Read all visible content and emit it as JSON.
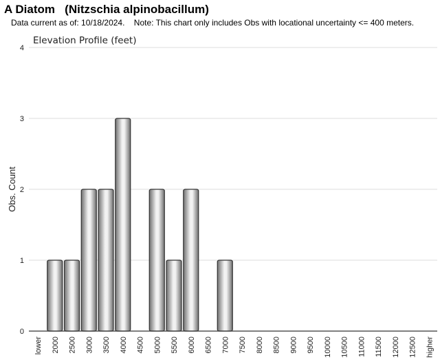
{
  "header": {
    "title": "A Diatom   (Nitzschia alpinobacillum)",
    "subtitle": "Data current as of: 10/18/2024.    Note: This chart only includes Obs with locational uncertainty <= 400 meters."
  },
  "chart_data": {
    "type": "bar",
    "title": "Elevation Profile (feet)",
    "xlabel": "",
    "ylabel": "Obs. Count",
    "categories": [
      "lower",
      "2000",
      "2500",
      "3000",
      "3500",
      "4000",
      "4500",
      "5000",
      "5500",
      "6000",
      "6500",
      "7000",
      "7500",
      "8000",
      "8500",
      "9000",
      "9500",
      "10000",
      "10500",
      "11000",
      "11500",
      "12000",
      "12500",
      "higher"
    ],
    "values": [
      0,
      1,
      1,
      2,
      2,
      3,
      0,
      2,
      1,
      2,
      0,
      1,
      0,
      0,
      0,
      0,
      0,
      0,
      0,
      0,
      0,
      0,
      0,
      0
    ],
    "ylim": [
      0,
      4
    ],
    "yticks": [
      "0",
      "1",
      "2",
      "3",
      "4"
    ],
    "grid": true,
    "legend": "none",
    "colors": {
      "bar_dark": "#6f6f6f",
      "bar_light": "#f2f2f2",
      "bar_stroke": "#333333",
      "grid": "#dddddd"
    }
  }
}
